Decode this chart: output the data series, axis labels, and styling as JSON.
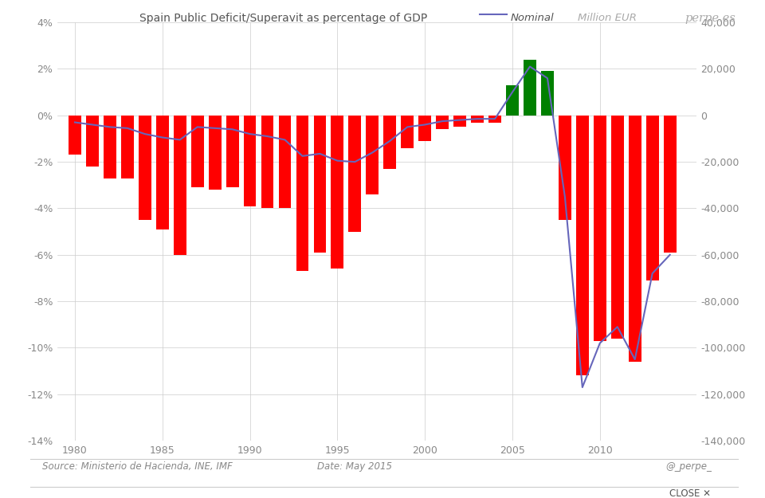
{
  "years": [
    1980,
    1981,
    1982,
    1983,
    1984,
    1985,
    1986,
    1987,
    1988,
    1989,
    1990,
    1991,
    1992,
    1993,
    1994,
    1995,
    1996,
    1997,
    1998,
    1999,
    2000,
    2001,
    2002,
    2003,
    2004,
    2005,
    2006,
    2007,
    2008,
    2009,
    2010,
    2011,
    2012,
    2013,
    2014
  ],
  "pct_gdp": [
    -0.017,
    -0.022,
    -0.027,
    -0.027,
    -0.045,
    -0.049,
    -0.06,
    -0.031,
    -0.032,
    -0.031,
    -0.039,
    -0.04,
    -0.04,
    -0.067,
    -0.059,
    -0.066,
    -0.05,
    -0.034,
    -0.023,
    -0.014,
    -0.011,
    -0.006,
    -0.005,
    -0.003,
    -0.003,
    0.013,
    0.024,
    0.019,
    -0.045,
    -0.112,
    -0.097,
    -0.096,
    -0.106,
    -0.071,
    -0.059
  ],
  "nominal_mn": [
    -3000,
    -4000,
    -5000,
    -5500,
    -8000,
    -9500,
    -10500,
    -5000,
    -5500,
    -6000,
    -8000,
    -9000,
    -10500,
    -17500,
    -16500,
    -19500,
    -20000,
    -16000,
    -11000,
    -5000,
    -4000,
    -2500,
    -2000,
    -1500,
    -1500,
    10000,
    21000,
    16000,
    -35000,
    -117000,
    -98000,
    -91000,
    -105000,
    -68000,
    -60000
  ],
  "bar_colors": [
    "red",
    "red",
    "red",
    "red",
    "red",
    "red",
    "red",
    "red",
    "red",
    "red",
    "red",
    "red",
    "red",
    "red",
    "red",
    "red",
    "red",
    "red",
    "red",
    "red",
    "red",
    "red",
    "red",
    "red",
    "red",
    "green",
    "green",
    "green",
    "red",
    "red",
    "red",
    "red",
    "red",
    "red",
    "red"
  ],
  "title": "Spain Public Deficit/Superavit as percentage of GDP",
  "legend_line_label": "Nominal",
  "legend_right_label": "Million EUR",
  "legend_brand": "perpe.es",
  "source_text": "Source: Ministerio de Hacienda, INE, IMF",
  "date_text": "Date: May 2015",
  "handle_text": "@_perpe_",
  "close_text": "CLOSE ✕",
  "ylim_left": [
    -0.14,
    0.04
  ],
  "ylim_right": [
    -140000,
    40000
  ],
  "yticks_left": [
    0.04,
    0.02,
    0.0,
    -0.02,
    -0.04,
    -0.06,
    -0.08,
    -0.1,
    -0.12,
    -0.14
  ],
  "yticks_right": [
    40000,
    20000,
    0,
    -20000,
    -40000,
    -60000,
    -80000,
    -100000,
    -120000,
    -140000
  ],
  "ytick_labels_left": [
    "4%",
    "2%",
    "0%",
    "-2%",
    "-4%",
    "-6%",
    "-8%",
    "-10%",
    "-12%",
    "-14%"
  ],
  "ytick_labels_right": [
    "40,000",
    "20,000",
    "0",
    "-20,000",
    "-40,000",
    "-60,000",
    "-80,000",
    "-100,000",
    "-120,000",
    "-140,000"
  ],
  "xticks": [
    1980,
    1985,
    1990,
    1995,
    2000,
    2005,
    2010
  ],
  "background_color": "#ffffff",
  "grid_color": "#cccccc",
  "bar_width": 0.72,
  "line_color": "#6666bb",
  "line_width": 1.5,
  "title_color": "#555555",
  "tick_color": "#888888",
  "annotation_color": "#888888"
}
